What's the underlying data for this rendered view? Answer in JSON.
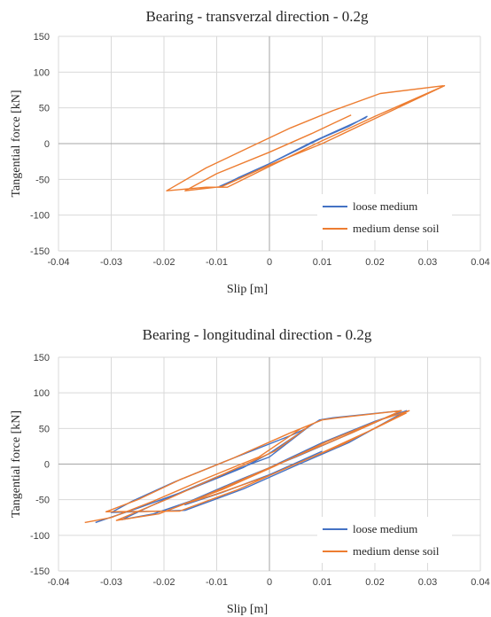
{
  "chart_data": [
    {
      "type": "line",
      "title": "Bearing - transverzal direction - 0.2g",
      "xlabel": "Slip [m]",
      "ylabel": "Tangential force [kN]",
      "xlim": [
        -0.04,
        0.04
      ],
      "ylim": [
        -150,
        150
      ],
      "xticks": [
        "-0.04",
        "-0.03",
        "-0.02",
        "-0.01",
        "0",
        "0.01",
        "0.02",
        "0.03",
        "0.04"
      ],
      "yticks": [
        "150",
        "100",
        "50",
        "0",
        "-50",
        "-100",
        "-150"
      ],
      "grid": true,
      "legend_position": "bottom-right",
      "series": [
        {
          "name": "loose medium",
          "color": "#4472C4",
          "points": [
            [
              -0.0095,
              -60
            ],
            [
              -0.005,
              -45
            ],
            [
              0.0,
              -28
            ],
            [
              0.005,
              -10
            ],
            [
              0.01,
              8
            ],
            [
              0.015,
              24
            ],
            [
              0.0185,
              38
            ],
            [
              0.0182,
              36
            ],
            [
              0.014,
              22
            ],
            [
              0.008,
              2
            ],
            [
              0.0,
              -28
            ],
            [
              -0.006,
              -48
            ],
            [
              -0.0095,
              -61
            ]
          ]
        },
        {
          "name": "medium dense soil",
          "color": "#ED7D31",
          "points": [
            [
              0.033,
              81
            ],
            [
              0.021,
              70
            ],
            [
              0.012,
              46
            ],
            [
              0.004,
              22
            ],
            [
              -0.004,
              -6
            ],
            [
              -0.012,
              -34
            ],
            [
              -0.0195,
              -66
            ],
            [
              -0.012,
              -61
            ],
            [
              -0.008,
              -61
            ],
            [
              0.0,
              -32
            ],
            [
              0.01,
              4
            ],
            [
              0.02,
              38
            ],
            [
              0.0332,
              81
            ],
            [
              0.02,
              35
            ],
            [
              0.01,
              0
            ],
            [
              0.0,
              -30
            ],
            [
              -0.009,
              -60
            ],
            [
              -0.016,
              -66
            ],
            [
              -0.01,
              -42
            ],
            [
              0.0,
              -12
            ],
            [
              0.008,
              14
            ],
            [
              0.0155,
              40
            ]
          ]
        }
      ]
    },
    {
      "type": "line",
      "title": "Bearing - longitudinal direction - 0.2g",
      "xlabel": "Slip [m]",
      "ylabel": "Tangential force [kN]",
      "xlim": [
        -0.04,
        0.04
      ],
      "ylim": [
        -150,
        150
      ],
      "xticks": [
        "-0.04",
        "-0.03",
        "-0.02",
        "-0.01",
        "0",
        "0.01",
        "0.02",
        "0.03",
        "0.04"
      ],
      "yticks": [
        "150",
        "100",
        "50",
        "0",
        "-50",
        "-100",
        "-150"
      ],
      "grid": true,
      "legend_position": "bottom-right",
      "series": [
        {
          "name": "loose medium",
          "color": "#4472C4",
          "points": [
            [
              -0.033,
              -82
            ],
            [
              -0.025,
              -62
            ],
            [
              -0.015,
              -35
            ],
            [
              -0.005,
              -5
            ],
            [
              0.0,
              15
            ],
            [
              0.008,
              55
            ],
            [
              0.0095,
              62
            ],
            [
              0.012,
              65
            ],
            [
              0.025,
              75
            ],
            [
              0.015,
              42
            ],
            [
              0.005,
              10
            ],
            [
              -0.005,
              -20
            ],
            [
              -0.015,
              -52
            ],
            [
              -0.022,
              -70
            ],
            [
              -0.028,
              -78
            ],
            [
              -0.02,
              -50
            ],
            [
              -0.01,
              -18
            ],
            [
              0.0,
              10
            ],
            [
              0.007,
              50
            ],
            [
              0.004,
              40
            ],
            [
              -0.008,
              5
            ],
            [
              -0.018,
              -25
            ],
            [
              -0.026,
              -52
            ],
            [
              -0.03,
              -68
            ],
            [
              -0.016,
              -65
            ],
            [
              -0.005,
              -35
            ],
            [
              0.005,
              -2
            ],
            [
              0.015,
              30
            ],
            [
              0.026,
              75
            ],
            [
              0.02,
              60
            ],
            [
              0.01,
              30
            ],
            [
              0.0,
              -5
            ],
            [
              -0.01,
              -38
            ],
            [
              -0.016,
              -57
            ],
            [
              -0.009,
              -40
            ],
            [
              0.0,
              -15
            ],
            [
              0.01,
              18
            ]
          ]
        },
        {
          "name": "medium dense soil",
          "color": "#ED7D31",
          "points": [
            [
              -0.035,
              -82
            ],
            [
              -0.03,
              -75
            ],
            [
              -0.022,
              -52
            ],
            [
              -0.012,
              -20
            ],
            [
              -0.002,
              10
            ],
            [
              0.006,
              50
            ],
            [
              0.01,
              62
            ],
            [
              0.013,
              65
            ],
            [
              0.025,
              75
            ],
            [
              0.016,
              45
            ],
            [
              0.006,
              14
            ],
            [
              -0.004,
              -18
            ],
            [
              -0.014,
              -50
            ],
            [
              -0.021,
              -70
            ],
            [
              -0.029,
              -79
            ],
            [
              -0.019,
              -48
            ],
            [
              -0.009,
              -15
            ],
            [
              0.001,
              18
            ],
            [
              0.008,
              56
            ],
            [
              0.004,
              44
            ],
            [
              -0.007,
              8
            ],
            [
              -0.017,
              -22
            ],
            [
              -0.025,
              -50
            ],
            [
              -0.031,
              -67
            ],
            [
              -0.017,
              -66
            ],
            [
              -0.006,
              -36
            ],
            [
              0.004,
              -3
            ],
            [
              0.014,
              28
            ],
            [
              0.0265,
              75
            ],
            [
              0.021,
              62
            ],
            [
              0.011,
              32
            ],
            [
              0.001,
              -3
            ],
            [
              -0.009,
              -36
            ],
            [
              -0.017,
              -58
            ],
            [
              -0.01,
              -42
            ],
            [
              0.0,
              -16
            ],
            [
              0.01,
              16
            ],
            [
              0.02,
              50
            ],
            [
              0.026,
              72
            ]
          ]
        }
      ]
    }
  ]
}
